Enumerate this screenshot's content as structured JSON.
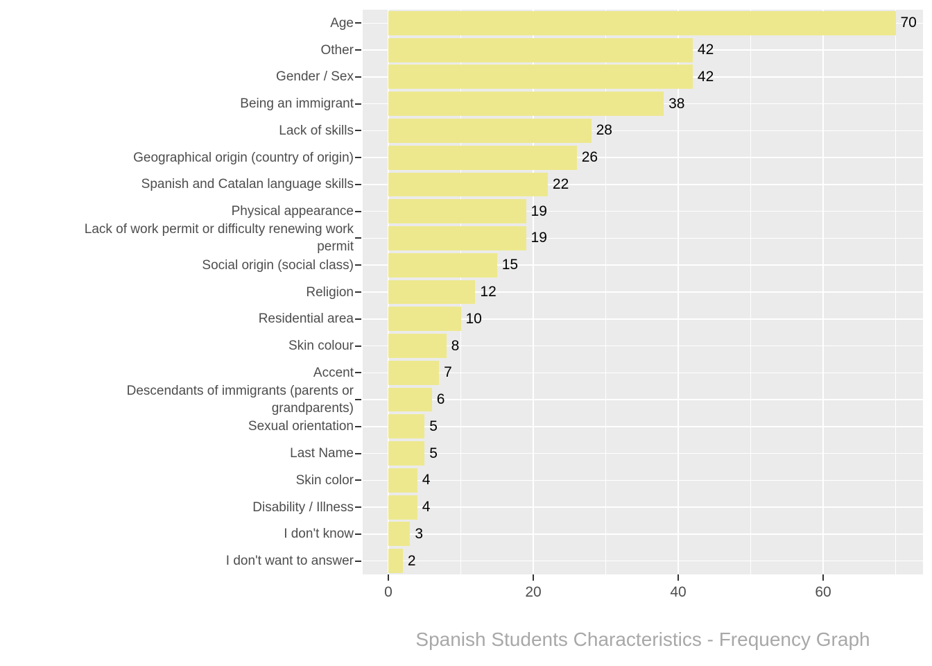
{
  "chart_data": {
    "type": "bar",
    "orientation": "horizontal",
    "title": "Spanish Students Characteristics - Frequency Graph",
    "categories": [
      "Age",
      "Other",
      "Gender / Sex",
      "Being an immigrant",
      "Lack of skills",
      "Geographical origin (country of origin)",
      "Spanish and Catalan language skills",
      "Physical appearance",
      "Lack of work permit or difficulty renewing work\npermit",
      "Social origin (social class)",
      "Religion",
      "Residential area",
      "Skin colour",
      "Accent",
      "Descendants of immigrants (parents or\ngrandparents)",
      "Sexual orientation",
      "Last Name",
      "Skin color",
      "Disability / Illness",
      "I don't know",
      "I don't want to answer"
    ],
    "values": [
      70,
      42,
      42,
      38,
      28,
      26,
      22,
      19,
      19,
      15,
      12,
      10,
      8,
      7,
      6,
      5,
      5,
      4,
      4,
      3,
      2
    ],
    "xlabel": "",
    "ylabel": "",
    "x_ticks": [
      0,
      20,
      40,
      60
    ],
    "x_minor_ticks": [
      10,
      30,
      50,
      70
    ],
    "xlim": [
      0,
      73.8
    ],
    "grid": true,
    "legend": false,
    "bar_value_labels_shown": true
  },
  "colors": {
    "bar_fill": "#EDE88D",
    "panel_background": "#EBEBEB",
    "grid_line": "#FFFFFF",
    "axis_text": "#4D4D4D",
    "tick_mark": "#333333",
    "value_label": "#000000",
    "title_text": "#A8A8A8",
    "page_background": "#FFFFFF"
  }
}
